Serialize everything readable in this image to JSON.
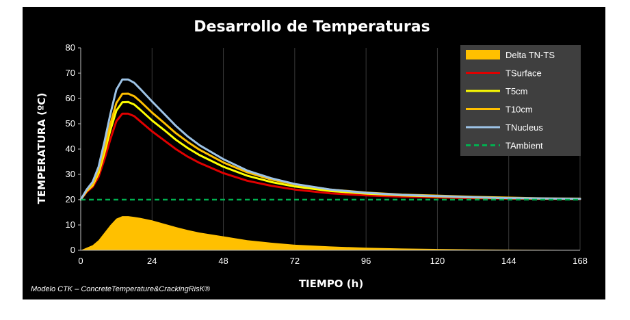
{
  "chart_data": {
    "type": "line",
    "title": "Desarrollo de Temperaturas",
    "xlabel": "TIEMPO (h)",
    "ylabel": "TEMPERATURA (ºC)",
    "xlim": [
      0,
      168
    ],
    "ylim": [
      0,
      80
    ],
    "xticks": [
      "0",
      "24",
      "48",
      "72",
      "96",
      "120",
      "144",
      "168"
    ],
    "yticks": [
      "0",
      "10",
      "20",
      "30",
      "40",
      "50",
      "60",
      "70",
      "80"
    ],
    "grid": "vertical",
    "legend_position": "top-right",
    "x": [
      0,
      2,
      4,
      6,
      8,
      10,
      12,
      14,
      16,
      18,
      20,
      24,
      28,
      32,
      36,
      40,
      48,
      56,
      64,
      72,
      84,
      96,
      108,
      120,
      132,
      144,
      156,
      168
    ],
    "series": [
      {
        "name": "Delta  TN-TS",
        "kind": "area",
        "color": "#FFC000",
        "values": [
          0,
          1,
          2,
          4,
          7,
          10,
          12.5,
          13.5,
          13.5,
          13.2,
          12.8,
          11.8,
          10.5,
          9.2,
          8,
          7,
          5.5,
          4,
          3,
          2.2,
          1.5,
          1,
          0.7,
          0.5,
          0.35,
          0.25,
          0.15,
          0.1
        ]
      },
      {
        "name": "TSurface",
        "kind": "line",
        "color": "#E00000",
        "values": [
          20,
          23,
          25,
          29,
          36,
          44,
          51,
          54,
          54,
          53,
          51,
          47,
          43.5,
          40,
          37,
          34.5,
          30.5,
          27.5,
          25.5,
          24,
          22.5,
          21.7,
          21.2,
          20.9,
          20.6,
          20.4,
          20.3,
          20.2
        ]
      },
      {
        "name": "T5cm",
        "kind": "line",
        "color": "#FFFF00",
        "values": [
          20,
          23.4,
          25.6,
          30.4,
          38.6,
          47.6,
          55.2,
          58.5,
          58.6,
          57.6,
          55.6,
          51.3,
          47.6,
          43.7,
          40.4,
          37.6,
          33,
          29.5,
          27,
          25.2,
          23.4,
          22.4,
          21.7,
          21.3,
          20.9,
          20.6,
          20.4,
          20.3
        ]
      },
      {
        "name": "T10cm",
        "kind": "line",
        "color": "#FFC000",
        "values": [
          20,
          23.7,
          26.1,
          31.4,
          40.4,
          50,
          58.2,
          61.8,
          61.9,
          60.9,
          58.9,
          54.4,
          50.4,
          46.3,
          42.8,
          39.7,
          34.7,
          30.8,
          28,
          26,
          24,
          22.8,
          22,
          21.6,
          21.1,
          20.8,
          20.5,
          20.4
        ]
      },
      {
        "name": "TNucleus",
        "kind": "line",
        "color": "#9DC3E6",
        "values": [
          20,
          24,
          27,
          33,
          43,
          54,
          63.5,
          67.5,
          67.5,
          66.2,
          63.8,
          58.8,
          54,
          49.2,
          45,
          41.5,
          36,
          31.5,
          28.5,
          26.2,
          24,
          22.7,
          21.9,
          21.4,
          20.95,
          20.65,
          20.45,
          20.3
        ]
      },
      {
        "name": "TAmbient",
        "kind": "dashed-line",
        "color": "#00B050",
        "values": [
          20,
          20,
          20,
          20,
          20,
          20,
          20,
          20,
          20,
          20,
          20,
          20,
          20,
          20,
          20,
          20,
          20,
          20,
          20,
          20,
          20,
          20,
          20,
          20,
          20,
          20,
          20,
          20
        ]
      }
    ],
    "annotation": "Modelo CTK – ConcreteTemperature&CrackingRisK®"
  }
}
